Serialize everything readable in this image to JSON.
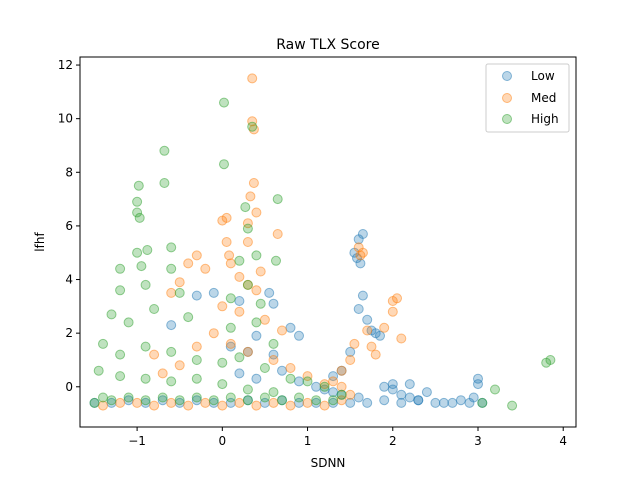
{
  "chart_data": {
    "type": "scatter",
    "title": "Raw TLX Score",
    "xlabel": "SDNN",
    "ylabel": "lfhf",
    "xlim": [
      -1.67,
      4.15
    ],
    "ylim": [
      -1.5,
      12.3
    ],
    "x_ticks": [
      -1,
      0,
      1,
      2,
      3,
      4
    ],
    "y_ticks": [
      0,
      2,
      4,
      6,
      8,
      10,
      12
    ],
    "grid": false,
    "legend_position": "top-right",
    "series": [
      {
        "name": "Low",
        "color": "#1f77b4",
        "points": [
          [
            -1.5,
            -0.6
          ],
          [
            -1.3,
            -0.6
          ],
          [
            -1.1,
            -0.5
          ],
          [
            -0.9,
            -0.6
          ],
          [
            -0.7,
            -0.5
          ],
          [
            -0.5,
            -0.6
          ],
          [
            -0.3,
            -0.5
          ],
          [
            -0.1,
            -0.6
          ],
          [
            0.1,
            -0.6
          ],
          [
            0.3,
            -0.5
          ],
          [
            0.5,
            -0.6
          ],
          [
            0.7,
            -0.5
          ],
          [
            0.9,
            -0.6
          ],
          [
            1.1,
            -0.6
          ],
          [
            1.3,
            -0.6
          ],
          [
            1.5,
            -0.6
          ],
          [
            1.7,
            -0.6
          ],
          [
            1.9,
            -0.5
          ],
          [
            2.1,
            -0.6
          ],
          [
            2.3,
            -0.5
          ],
          [
            2.5,
            -0.6
          ],
          [
            2.7,
            -0.6
          ],
          [
            2.9,
            -0.6
          ],
          [
            3.05,
            -0.6
          ],
          [
            -0.3,
            3.4
          ],
          [
            -0.1,
            3.5
          ],
          [
            0.2,
            3.2
          ],
          [
            0.55,
            3.5
          ],
          [
            0.6,
            3.1
          ],
          [
            0.8,
            2.2
          ],
          [
            0.9,
            1.9
          ],
          [
            -0.6,
            2.3
          ],
          [
            0.4,
            1.9
          ],
          [
            0.3,
            1.3
          ],
          [
            0.1,
            1.5
          ],
          [
            0.6,
            1.2
          ],
          [
            0.2,
            0.5
          ],
          [
            0.4,
            0.3
          ],
          [
            0.7,
            0.6
          ],
          [
            0.9,
            0.2
          ],
          [
            1.1,
            0.0
          ],
          [
            1.2,
            -0.1
          ],
          [
            1.3,
            -0.2
          ],
          [
            1.4,
            -0.3
          ],
          [
            1.6,
            -0.4
          ],
          [
            1.65,
            5.7
          ],
          [
            1.6,
            5.5
          ],
          [
            1.55,
            5.0
          ],
          [
            1.62,
            4.6
          ],
          [
            1.58,
            4.8
          ],
          [
            1.65,
            3.4
          ],
          [
            1.6,
            2.9
          ],
          [
            1.7,
            2.5
          ],
          [
            1.75,
            2.1
          ],
          [
            1.8,
            2.0
          ],
          [
            1.85,
            1.9
          ],
          [
            1.5,
            1.3
          ],
          [
            1.4,
            0.6
          ],
          [
            1.3,
            0.4
          ],
          [
            1.9,
            0.0
          ],
          [
            2.0,
            0.1
          ],
          [
            2.2,
            0.1
          ],
          [
            2.4,
            -0.2
          ],
          [
            2.0,
            -0.1
          ],
          [
            2.1,
            -0.3
          ],
          [
            2.2,
            -0.4
          ],
          [
            2.3,
            -0.5
          ],
          [
            2.6,
            -0.6
          ],
          [
            2.8,
            -0.5
          ],
          [
            3.0,
            0.1
          ],
          [
            3.0,
            0.3
          ],
          [
            2.95,
            -0.4
          ]
        ]
      },
      {
        "name": "Med",
        "color": "#ff7f0e",
        "points": [
          [
            -1.4,
            -0.7
          ],
          [
            -1.2,
            -0.6
          ],
          [
            -1.0,
            -0.6
          ],
          [
            -0.8,
            -0.7
          ],
          [
            -0.6,
            -0.6
          ],
          [
            -0.4,
            -0.7
          ],
          [
            -0.2,
            -0.6
          ],
          [
            0.0,
            -0.7
          ],
          [
            0.2,
            -0.6
          ],
          [
            0.4,
            -0.7
          ],
          [
            0.6,
            -0.6
          ],
          [
            0.8,
            -0.7
          ],
          [
            1.0,
            -0.6
          ],
          [
            1.2,
            -0.7
          ],
          [
            1.4,
            -0.5
          ],
          [
            0.35,
            11.5
          ],
          [
            0.35,
            9.9
          ],
          [
            0.37,
            9.6
          ],
          [
            0.37,
            7.6
          ],
          [
            0.33,
            7.1
          ],
          [
            0.4,
            6.5
          ],
          [
            0.05,
            6.3
          ],
          [
            0.0,
            6.2
          ],
          [
            0.3,
            6.1
          ],
          [
            0.65,
            5.7
          ],
          [
            0.3,
            5.4
          ],
          [
            0.05,
            5.4
          ],
          [
            0.08,
            4.9
          ],
          [
            0.1,
            4.6
          ],
          [
            0.45,
            4.3
          ],
          [
            -0.3,
            4.9
          ],
          [
            -0.4,
            4.6
          ],
          [
            -0.2,
            4.4
          ],
          [
            0.2,
            4.1
          ],
          [
            0.3,
            3.8
          ],
          [
            0.4,
            3.6
          ],
          [
            -0.5,
            3.9
          ],
          [
            -0.6,
            3.5
          ],
          [
            0.0,
            3.0
          ],
          [
            0.2,
            2.8
          ],
          [
            0.5,
            2.5
          ],
          [
            0.7,
            2.1
          ],
          [
            -0.1,
            2.0
          ],
          [
            0.1,
            1.6
          ],
          [
            0.3,
            1.3
          ],
          [
            0.6,
            1.0
          ],
          [
            0.8,
            0.7
          ],
          [
            1.0,
            0.4
          ],
          [
            1.2,
            0.1
          ],
          [
            1.3,
            0.2
          ],
          [
            1.4,
            0.6
          ],
          [
            1.5,
            1.0
          ],
          [
            1.55,
            1.6
          ],
          [
            1.7,
            2.1
          ],
          [
            1.75,
            1.5
          ],
          [
            1.8,
            1.2
          ],
          [
            1.9,
            2.2
          ],
          [
            2.0,
            3.2
          ],
          [
            2.05,
            3.3
          ],
          [
            2.0,
            2.8
          ],
          [
            2.1,
            1.8
          ],
          [
            1.6,
            5.2
          ],
          [
            1.65,
            5.0
          ],
          [
            1.62,
            4.9
          ],
          [
            1.4,
            0.0
          ],
          [
            1.5,
            -0.3
          ],
          [
            -0.8,
            1.2
          ],
          [
            -0.5,
            0.8
          ],
          [
            -0.3,
            1.5
          ],
          [
            -0.7,
            0.5
          ]
        ]
      },
      {
        "name": "High",
        "color": "#2ca02c",
        "points": [
          [
            -1.5,
            -0.6
          ],
          [
            -1.4,
            -0.4
          ],
          [
            -1.3,
            -0.5
          ],
          [
            -1.1,
            -0.4
          ],
          [
            -0.9,
            -0.5
          ],
          [
            -0.7,
            -0.4
          ],
          [
            -0.5,
            -0.5
          ],
          [
            -0.3,
            -0.4
          ],
          [
            -0.1,
            -0.5
          ],
          [
            0.1,
            -0.4
          ],
          [
            0.3,
            -0.5
          ],
          [
            0.5,
            -0.4
          ],
          [
            0.7,
            -0.5
          ],
          [
            0.9,
            -0.4
          ],
          [
            1.1,
            -0.5
          ],
          [
            1.3,
            -0.5
          ],
          [
            0.02,
            10.6
          ],
          [
            0.35,
            9.7
          ],
          [
            -0.68,
            8.8
          ],
          [
            0.02,
            8.3
          ],
          [
            -0.98,
            7.5
          ],
          [
            -0.68,
            7.6
          ],
          [
            -1.0,
            6.9
          ],
          [
            0.65,
            7.0
          ],
          [
            0.27,
            6.7
          ],
          [
            -1.0,
            6.5
          ],
          [
            -0.97,
            6.3
          ],
          [
            0.3,
            5.9
          ],
          [
            -0.88,
            5.1
          ],
          [
            -0.6,
            5.2
          ],
          [
            -1.0,
            5.0
          ],
          [
            -0.95,
            4.5
          ],
          [
            -1.2,
            4.4
          ],
          [
            -0.6,
            4.4
          ],
          [
            0.2,
            4.7
          ],
          [
            0.4,
            4.9
          ],
          [
            0.63,
            4.7
          ],
          [
            -1.2,
            3.6
          ],
          [
            -0.9,
            3.8
          ],
          [
            -0.5,
            3.5
          ],
          [
            0.1,
            3.3
          ],
          [
            0.3,
            3.8
          ],
          [
            0.45,
            3.1
          ],
          [
            -1.3,
            2.7
          ],
          [
            -1.1,
            2.4
          ],
          [
            -0.8,
            2.9
          ],
          [
            -0.4,
            2.6
          ],
          [
            0.1,
            2.2
          ],
          [
            0.4,
            2.4
          ],
          [
            0.6,
            1.6
          ],
          [
            -1.4,
            1.6
          ],
          [
            -1.2,
            1.2
          ],
          [
            -0.9,
            1.5
          ],
          [
            -0.6,
            1.3
          ],
          [
            -0.3,
            1.0
          ],
          [
            0.0,
            0.9
          ],
          [
            0.2,
            1.1
          ],
          [
            0.5,
            0.7
          ],
          [
            0.8,
            0.3
          ],
          [
            1.0,
            0.2
          ],
          [
            1.2,
            0.0
          ],
          [
            -1.45,
            0.6
          ],
          [
            -1.2,
            0.4
          ],
          [
            -0.9,
            0.3
          ],
          [
            -0.6,
            0.2
          ],
          [
            -0.3,
            0.3
          ],
          [
            0.0,
            0.1
          ],
          [
            0.3,
            -0.1
          ],
          [
            0.6,
            -0.2
          ],
          [
            1.4,
            -0.3
          ],
          [
            3.05,
            -0.6
          ],
          [
            3.2,
            -0.1
          ],
          [
            3.4,
            -0.7
          ],
          [
            3.8,
            0.9
          ],
          [
            3.85,
            1.0
          ]
        ]
      }
    ]
  }
}
